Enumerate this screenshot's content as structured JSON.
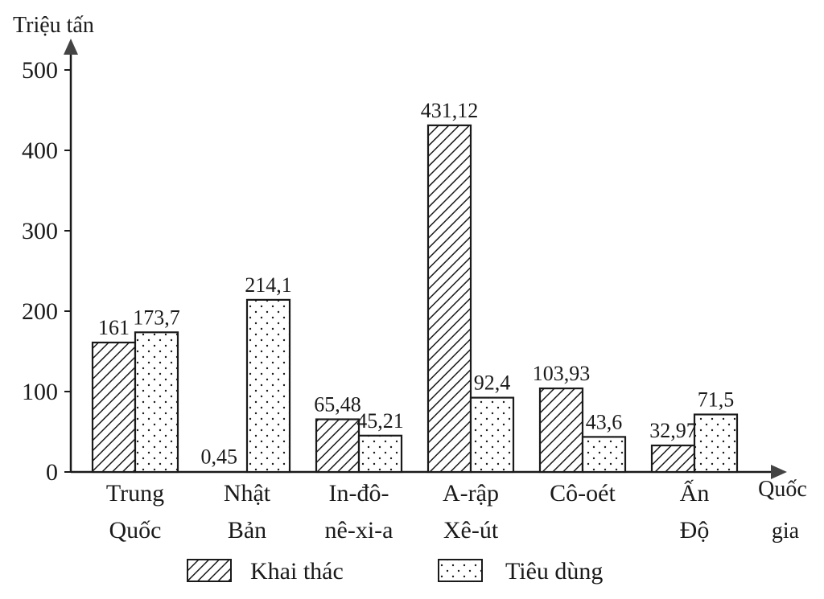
{
  "chart_data": {
    "type": "bar",
    "ylabel": "Triệu tấn",
    "xlabel": [
      "Quốc",
      "gia"
    ],
    "ylim": [
      0,
      500
    ],
    "yticks": [
      0,
      100,
      200,
      300,
      400,
      500
    ],
    "categories": [
      [
        "Trung",
        "Quốc"
      ],
      [
        "Nhật",
        "Bản"
      ],
      [
        "In-đô-",
        "nê-xi-a"
      ],
      [
        "A-rập",
        "Xê-út"
      ],
      [
        "Cô-oét"
      ],
      [
        "Ấn",
        "Độ"
      ]
    ],
    "series": [
      {
        "name": "Khai thác",
        "pattern": "diagonal-hatch",
        "values": [
          161,
          0.45,
          65.48,
          431.12,
          103.93,
          32.97
        ],
        "labels": [
          "161",
          "0,45",
          "65,48",
          "431,12",
          "103,93",
          "32,97"
        ]
      },
      {
        "name": "Tiêu dùng",
        "pattern": "dots",
        "values": [
          173.7,
          214.1,
          45.21,
          92.4,
          43.6,
          71.5
        ],
        "labels": [
          "173,7",
          "214,1",
          "45,21",
          "92,4",
          "43,6",
          "71,5"
        ]
      }
    ],
    "grid": false,
    "legend_position": "bottom"
  },
  "colors": {
    "ink": "#1a1a1a",
    "background": "#ffffff"
  }
}
